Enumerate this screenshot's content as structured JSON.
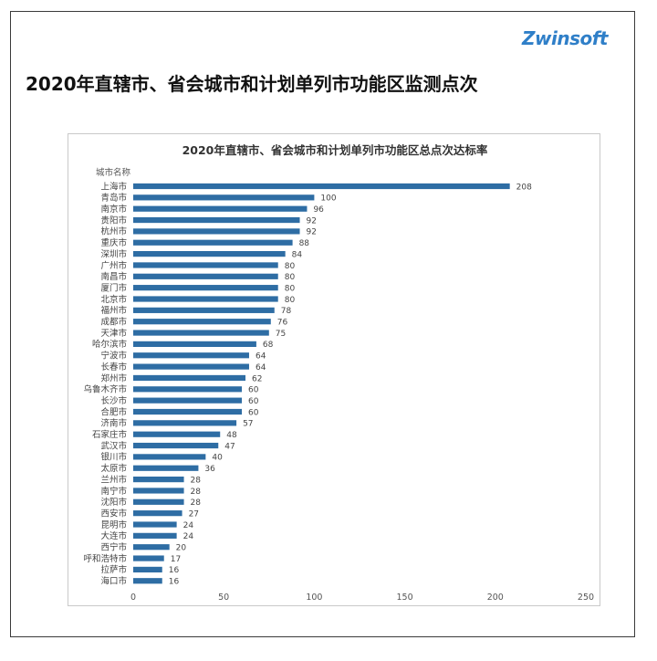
{
  "page": {
    "title": "2020年直辖市、省会城市和计划单列市功能区监测点次",
    "logo_text": "Zwinsoft"
  },
  "colors": {
    "bar": "#2e6da4",
    "logo": "#2f7fc8"
  },
  "chart_data": {
    "type": "bar",
    "orientation": "horizontal",
    "title": "2020年直辖市、省会城市和计划单列市功能区总点次达标率",
    "category_header": "城市名称",
    "categories": [
      "上海市",
      "青岛市",
      "南京市",
      "贵阳市",
      "杭州市",
      "重庆市",
      "深圳市",
      "广州市",
      "南昌市",
      "厦门市",
      "北京市",
      "福州市",
      "成都市",
      "天津市",
      "哈尔滨市",
      "宁波市",
      "长春市",
      "郑州市",
      "乌鲁木齐市",
      "长沙市",
      "合肥市",
      "济南市",
      "石家庄市",
      "武汉市",
      "银川市",
      "太原市",
      "兰州市",
      "南宁市",
      "沈阳市",
      "西安市",
      "昆明市",
      "大连市",
      "西宁市",
      "呼和浩特市",
      "拉萨市",
      "海口市"
    ],
    "values": [
      208,
      100,
      96,
      92,
      92,
      88,
      84,
      80,
      80,
      80,
      80,
      78,
      76,
      75,
      68,
      64,
      64,
      62,
      60,
      60,
      60,
      57,
      48,
      47,
      40,
      36,
      28,
      28,
      28,
      27,
      24,
      24,
      20,
      17,
      16,
      16
    ],
    "xlim": [
      0,
      250
    ],
    "xticks": [
      0,
      50,
      100,
      150,
      200,
      250
    ],
    "grid": false,
    "data_labels": true
  }
}
